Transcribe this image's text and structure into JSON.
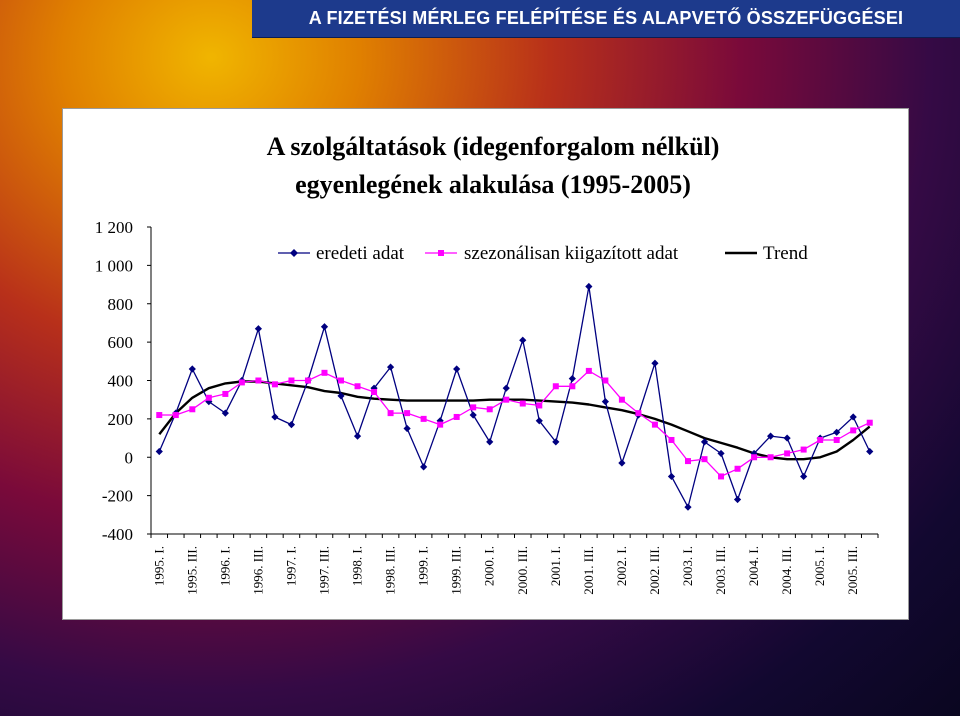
{
  "header": {
    "title": "A FIZETÉSI MÉRLEG FELÉPÍTÉSE ÉS ALAPVETŐ ÖSSZEFÜGGÉSEI"
  },
  "chart_data": {
    "type": "line",
    "title_lines": [
      "A szolgáltatások (idegenforgalom nélkül)",
      "egyenlegének alakulása (1995-2005)"
    ],
    "ylim": [
      -400,
      1200
    ],
    "yticks": [
      -400,
      -200,
      0,
      200,
      400,
      600,
      800,
      1000,
      1200
    ],
    "ytick_labels": [
      "-400",
      "-200",
      "0",
      "200",
      "400",
      "600",
      "800",
      "1 000",
      "1 200"
    ],
    "grid": false,
    "legend_position": "top-right",
    "categories": [
      "1995. I.",
      "1995. II.",
      "1995. III.",
      "1995. IV.",
      "1996. I.",
      "1996. II.",
      "1996. III.",
      "1996. IV.",
      "1997. I.",
      "1997. II.",
      "1997. III.",
      "1997. IV.",
      "1998. I.",
      "1998. II.",
      "1998. III.",
      "1998. IV.",
      "1999. I.",
      "1999. II.",
      "1999. III.",
      "1999. IV.",
      "2000. I.",
      "2000. II.",
      "2000. III.",
      "2000. IV.",
      "2001. I.",
      "2001. II.",
      "2001. III.",
      "2001. IV.",
      "2002. I.",
      "2002. II.",
      "2002. III.",
      "2002. IV.",
      "2003. I.",
      "2003. II.",
      "2003. III.",
      "2003. IV.",
      "2004. I.",
      "2004. II.",
      "2004. III.",
      "2004. IV.",
      "2005. I.",
      "2005. II.",
      "2005. III.",
      "2005. IV."
    ],
    "x_tick_labels": [
      "1995. I.",
      "1995. III.",
      "1996. I.",
      "1996. III.",
      "1997. I.",
      "1997. III.",
      "1998. I.",
      "1998. III.",
      "1999. I.",
      "1999. III.",
      "2000. I.",
      "2000. III.",
      "2001. I.",
      "2001. III.",
      "2002. I.",
      "2002. III.",
      "2003. I.",
      "2003. III.",
      "2004. I.",
      "2004. III.",
      "2005. I.",
      "2005. III."
    ],
    "series": [
      {
        "name": "eredeti adat",
        "color": "#000080",
        "marker": "diamond",
        "values": [
          30,
          230,
          460,
          290,
          230,
          400,
          670,
          210,
          170,
          400,
          680,
          320,
          110,
          360,
          470,
          150,
          -50,
          190,
          460,
          220,
          80,
          360,
          610,
          190,
          80,
          410,
          890,
          290,
          -30,
          220,
          490,
          -100,
          -260,
          80,
          20,
          -220,
          20,
          110,
          100,
          -100,
          100,
          130,
          210,
          30
        ]
      },
      {
        "name": "szezonálisan kiigazított adat",
        "color": "#ff00ff",
        "marker": "square",
        "values": [
          220,
          220,
          250,
          310,
          330,
          390,
          400,
          380,
          400,
          400,
          440,
          400,
          370,
          340,
          230,
          230,
          200,
          170,
          210,
          260,
          250,
          300,
          280,
          270,
          370,
          370,
          450,
          400,
          300,
          230,
          170,
          90,
          -20,
          -10,
          -100,
          -60,
          0,
          0,
          20,
          40,
          90,
          90,
          140,
          180
        ]
      },
      {
        "name": "Trend",
        "color": "#000000",
        "marker": "none",
        "values": [
          120,
          230,
          310,
          360,
          385,
          395,
          395,
          385,
          375,
          365,
          345,
          335,
          315,
          305,
          300,
          295,
          295,
          295,
          295,
          295,
          300,
          300,
          300,
          295,
          290,
          285,
          275,
          260,
          245,
          225,
          200,
          170,
          135,
          100,
          75,
          50,
          20,
          0,
          -10,
          -10,
          0,
          30,
          90,
          160
        ]
      }
    ]
  }
}
